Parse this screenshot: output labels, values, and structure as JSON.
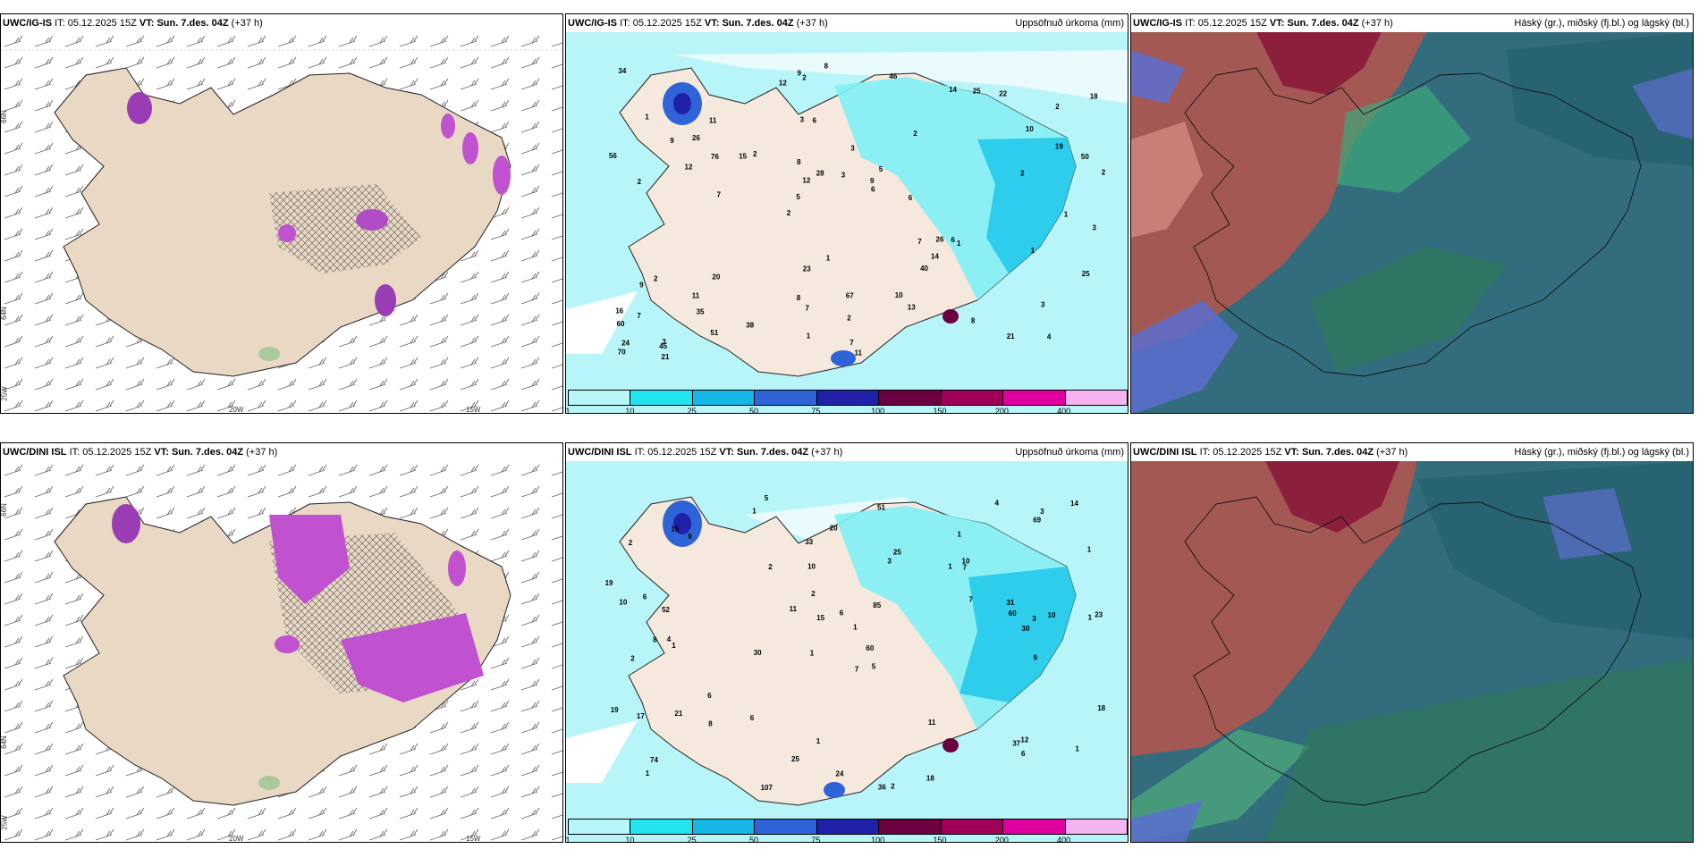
{
  "rows": [
    {
      "model": "UWC/IG-IS",
      "it_label": "IT:",
      "it_value": "05.12.2025 15Z",
      "vt_label": "VT:",
      "vt_value": "Sun. 7.des. 04Z",
      "lead": "(+37 h)"
    },
    {
      "model": "UWC/DINI ISL",
      "it_label": "IT:",
      "it_value": "05.12.2025 15Z",
      "vt_label": "VT:",
      "vt_value": "Sun. 7.des. 04Z",
      "lead": "(+37 h)"
    }
  ],
  "precip_title": "Uppsöfnuð úrkoma (mm)",
  "cloud_title": "Háský (gr.), miðský (fj.bl.) og lágský (bl.)",
  "colorbar": {
    "labels": [
      "1",
      "10",
      "25",
      "50",
      "75",
      "100",
      "150",
      "200",
      "400"
    ],
    "colors": [
      "#b8f5f8",
      "#22e3ee",
      "#16b7e6",
      "#2e64d8",
      "#2020a8",
      "#6a0040",
      "#a0005a",
      "#e000a0",
      "#f4b4f0"
    ]
  },
  "axes": {
    "lon_labels": [
      "20W",
      "15W"
    ],
    "lat_labels": [
      "66N",
      "64N",
      "25W"
    ]
  },
  "precip_values_top": [
    "4",
    "2",
    "2",
    "2",
    "2",
    "3",
    "3",
    "3",
    "2",
    "2",
    "60",
    "35",
    "6",
    "5",
    "1",
    "1",
    "2",
    "2",
    "7",
    "19",
    "5",
    "8",
    "12",
    "11",
    "14",
    "20",
    "21",
    "3",
    "6",
    "11",
    "15",
    "12",
    "40",
    "51",
    "50",
    "9",
    "24",
    "7",
    "6",
    "9",
    "10",
    "18",
    "14",
    "13",
    "11",
    "21",
    "70",
    "67",
    "22",
    "8",
    "7",
    "56",
    "26",
    "25",
    "45",
    "46",
    "12",
    "28",
    "25",
    "23",
    "38",
    "26",
    "76",
    "16",
    "34",
    "9",
    "3",
    "8",
    "2",
    "3",
    "7",
    "6",
    "1",
    "1",
    "2",
    "1",
    "8",
    "7",
    "10",
    "9",
    "1"
  ],
  "precip_values_bottom": [
    "5",
    "1",
    "1",
    "1",
    "5",
    "4",
    "2",
    "1",
    "2",
    "3",
    "1",
    "1",
    "1",
    "30",
    "36",
    "2",
    "1",
    "4",
    "7",
    "6",
    "52",
    "8",
    "23",
    "10",
    "19",
    "6",
    "15",
    "60",
    "12",
    "17",
    "37",
    "25",
    "21",
    "11",
    "11",
    "18",
    "31",
    "25",
    "14",
    "20",
    "74",
    "107",
    "18",
    "15",
    "24",
    "7",
    "6",
    "10",
    "19",
    "60",
    "33",
    "30",
    "85",
    "69",
    "51",
    "8",
    "2",
    "6",
    "3",
    "10",
    "1",
    "9",
    "9",
    "6",
    "7",
    "10",
    "3",
    "1",
    "2",
    "1"
  ]
}
